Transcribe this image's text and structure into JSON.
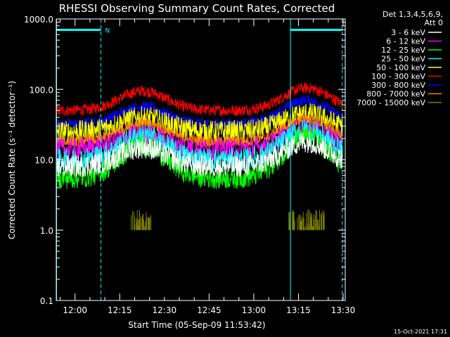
{
  "chart_data": {
    "type": "line",
    "title": "RHESSI Observing Summary Count Rates, Corrected",
    "xlabel": "Start Time (05-Sep-09 11:53:42)",
    "ylabel": "Corrected Count Rate (s⁻¹ detector⁻¹)",
    "yscale": "log",
    "ylim": [
      0.1,
      1000.0
    ],
    "y_ticks": [
      {
        "value": 0.1,
        "label": "0.1"
      },
      {
        "value": 1.0,
        "label": "1.0"
      },
      {
        "value": 10.0,
        "label": "10.0"
      },
      {
        "value": 100.0,
        "label": "100.0"
      },
      {
        "value": 1000.0,
        "label": "1000.0"
      }
    ],
    "xlim_minutes": [
      0,
      97
    ],
    "x_ticks": [
      {
        "minute": 6.3,
        "label": "12:00"
      },
      {
        "minute": 21.3,
        "label": "12:15"
      },
      {
        "minute": 36.3,
        "label": "12:30"
      },
      {
        "minute": 51.3,
        "label": "12:45"
      },
      {
        "minute": 66.3,
        "label": "13:00"
      },
      {
        "minute": 81.3,
        "label": "13:15"
      },
      {
        "minute": 96.3,
        "label": "13:30"
      }
    ],
    "legend_header": [
      "Det 1,3,4,5,6,9,",
      "Att 0"
    ],
    "legend_position": "right",
    "series": [
      {
        "name": "3 - 6 keV",
        "color": "#ffffff",
        "base": 8.0,
        "peak1": 15.0,
        "peak2": 18.0
      },
      {
        "name": "6 - 12 keV",
        "color": "#ff00ff",
        "base": 14.0,
        "peak1": 23.0,
        "peak2": 27.0
      },
      {
        "name": "12 - 25 keV",
        "color": "#00ff00",
        "base": 5.5,
        "peak1": 16.0,
        "peak2": 21.0
      },
      {
        "name": "25 - 50 keV",
        "color": "#00ffff",
        "base": 10.0,
        "peak1": 22.0,
        "peak2": 27.0
      },
      {
        "name": "50 - 100 keV",
        "color": "#ffff00",
        "base": 25.0,
        "peak1": 40.0,
        "peak2": 45.0
      },
      {
        "name": "100 - 300 keV",
        "color": "#ff0000",
        "base": 50.0,
        "peak1": 95.0,
        "peak2": 105.0
      },
      {
        "name": "300 - 800 keV",
        "color": "#0000ff",
        "base": 32.0,
        "peak1": 57.0,
        "peak2": 70.0
      },
      {
        "name": "800 - 7000 keV",
        "color": "#ff8000",
        "base": 18.0,
        "peak1": 33.0,
        "peak2": 38.0
      },
      {
        "name": "7000 - 15000 keV",
        "color": "#808000",
        "base": 1.0,
        "peak1": 1.9,
        "peak2": 1.9
      }
    ],
    "peak_minutes": [
      29,
      84
    ],
    "spike_windows_minutes": [
      [
        25,
        32
      ],
      [
        78,
        90
      ]
    ],
    "markers": {
      "solid_lines_minutes": [
        0,
        78.5
      ],
      "dashed_lines_minutes": [
        15,
        96
      ],
      "bar_segments_minutes": [
        [
          0,
          15
        ],
        [
          78.5,
          96
        ]
      ],
      "bar_value": 700,
      "bar_label": "N"
    },
    "color": {
      "background": "#000000",
      "foreground": "#ffffff",
      "marker": "#00ffff"
    }
  },
  "footer_date": "15-Oct-2021 17:31"
}
